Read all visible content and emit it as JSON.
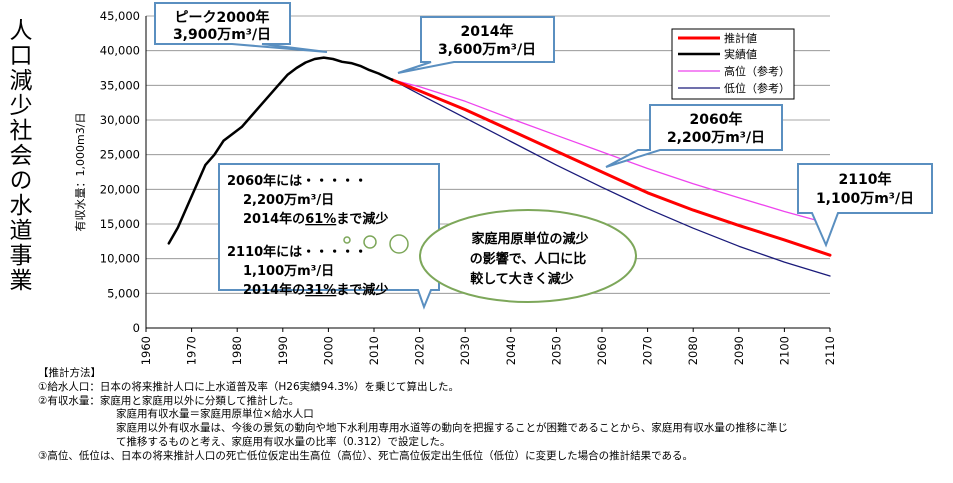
{
  "side_title": "人口減少社会の水道事業",
  "chart_data": {
    "type": "line",
    "title": "",
    "xlabel": "",
    "ylabel": "有収水量：1,000m3/日",
    "xlim": [
      1960,
      2110
    ],
    "ylim": [
      0,
      45000
    ],
    "x_ticks": [
      "1960",
      "1970",
      "1980",
      "1990",
      "2000",
      "2010",
      "2020",
      "2030",
      "2040",
      "2050",
      "2060",
      "2070",
      "2080",
      "2090",
      "2100",
      "2110"
    ],
    "y_ticks": [
      "0",
      "5,000",
      "10,000",
      "15,000",
      "20,000",
      "25,000",
      "30,000",
      "35,000",
      "40,000",
      "45,000"
    ],
    "grid": "horizontal",
    "legend_position": "top-right",
    "series": [
      {
        "name": "推計値",
        "color": "#ff0000",
        "x": [
          2014,
          2020,
          2030,
          2040,
          2050,
          2060,
          2070,
          2080,
          2090,
          2100,
          2110
        ],
        "y": [
          35800,
          34200,
          31500,
          28500,
          25500,
          22500,
          19500,
          17000,
          14800,
          12700,
          10500
        ]
      },
      {
        "name": "実績値",
        "color": "#000000",
        "x": [
          1965,
          1967,
          1969,
          1971,
          1973,
          1975,
          1977,
          1979,
          1981,
          1983,
          1985,
          1987,
          1989,
          1991,
          1993,
          1995,
          1997,
          1999,
          2001,
          2003,
          2005,
          2007,
          2009,
          2011,
          2013,
          2014
        ],
        "y": [
          12200,
          14500,
          17500,
          20500,
          23500,
          25000,
          27000,
          28000,
          29000,
          30500,
          32000,
          33500,
          35000,
          36500,
          37500,
          38300,
          38800,
          39000,
          38800,
          38400,
          38200,
          37800,
          37200,
          36700,
          36100,
          35800
        ]
      },
      {
        "name": "高位（参考）",
        "color": "#ee44ee",
        "x": [
          2014,
          2020,
          2030,
          2040,
          2050,
          2060,
          2070,
          2080,
          2090,
          2100,
          2110
        ],
        "y": [
          35800,
          34800,
          32700,
          30200,
          27800,
          25400,
          23000,
          20800,
          18800,
          16800,
          15000
        ]
      },
      {
        "name": "低位（参考）",
        "color": "#1a1a7a",
        "x": [
          2014,
          2020,
          2030,
          2040,
          2050,
          2060,
          2070,
          2080,
          2090,
          2100,
          2110
        ],
        "y": [
          35800,
          33700,
          30300,
          26900,
          23500,
          20300,
          17200,
          14400,
          11800,
          9500,
          7500
        ]
      }
    ],
    "callouts": {
      "peak": {
        "line1": "ピーク2000年",
        "line2": "3,900万m³/日"
      },
      "c2014": {
        "line1": "2014年",
        "line2": "3,600万m³/日"
      },
      "c2060": {
        "line1": "2060年",
        "line2": "2,200万m³/日"
      },
      "c2110": {
        "line1": "2110年",
        "line2": "1,100万m³/日"
      },
      "summary": {
        "a1": "2060年には・・・・・",
        "a2": "2,200万m³/日",
        "a3_pre": "2014年の",
        "a3_pct": "61%",
        "a3_post": "まで減少",
        "b1": "2110年には・・・・・",
        "b2": "1,100万m³/日",
        "b3_pre": "2014年の",
        "b3_pct": "31%",
        "b3_post": "まで減少"
      },
      "bubble": {
        "line1": "家庭用原単位の減少",
        "line2": "の影響で、人口に比",
        "line3": "較して大きく減少"
      }
    }
  },
  "notes": {
    "header": "【推計方法】",
    "n1": "①給水人口：日本の将来推計人口に上水道普及率（H26実績94.3%）を乗じて算出した。",
    "n2": "②有収水量：家庭用と家庭用以外に分類して推計した。",
    "n2a": "家庭用有収水量＝家庭用原単位×給水人口",
    "n2b": "家庭用以外有収水量は、今後の景気の動向や地下水利用専用水道等の動向を把握することが困難であることから、家庭用有収水量の推移に準じ",
    "n2c": "て推移するものと考え、家庭用有収水量の比率（0.312）で設定した。",
    "n3": "③高位、低位は、日本の将来推計人口の死亡低位仮定出生高位（高位）、死亡高位仮定出生低位（低位）に変更した場合の推計結果である。"
  }
}
